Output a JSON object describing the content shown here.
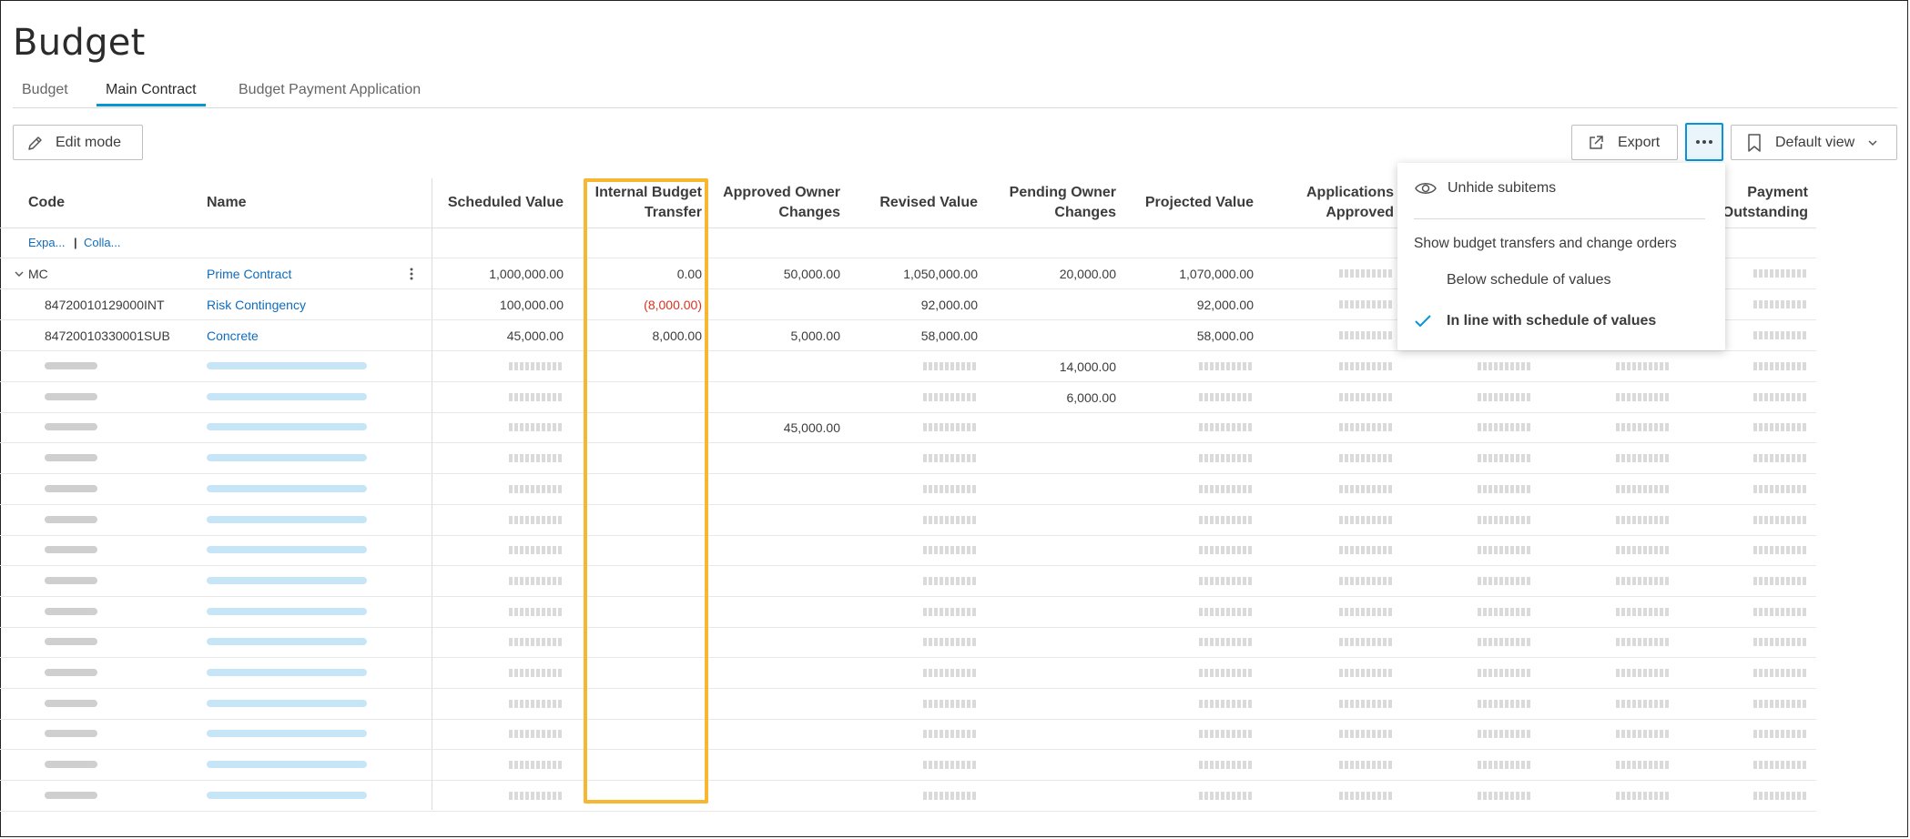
{
  "page": {
    "title": "Budget"
  },
  "tabs": [
    {
      "label": "Budget",
      "active": false
    },
    {
      "label": "Main Contract",
      "active": true
    },
    {
      "label": "Budget Payment Application",
      "active": false
    }
  ],
  "toolbar": {
    "edit_mode_label": "Edit mode",
    "export_label": "Export",
    "more_icon": "ellipsis-icon",
    "view_label": "Default view"
  },
  "columns": {
    "code": "Code",
    "name": "Name",
    "scheduled_value": "Scheduled Value",
    "ibt_1": "Internal Budget",
    "ibt_2": "Transfer",
    "aoc_1": "Approved Owner",
    "aoc_2": "Changes",
    "revised_value": "Revised Value",
    "poc_1": "Pending Owner",
    "poc_2": "Changes",
    "projected_value": "Projected Value",
    "apps_1": "Applications",
    "apps_2": "Approved",
    "pay_1": "Payment",
    "pay_2": "Outstanding"
  },
  "expand_collapse": {
    "expand": "Expa...",
    "separator": "|",
    "collapse": "Colla..."
  },
  "rows": [
    {
      "code": "MC",
      "name": "Prime Contract",
      "scheduled_value": "1,000,000.00",
      "internal_budget_transfer": "0.00",
      "approved_owner_changes": "50,000.00",
      "revised_value": "1,050,000.00",
      "pending_owner_changes": "20,000.00",
      "projected_value": "1,070,000.00"
    },
    {
      "code": "84720010129000INT",
      "name": "Risk Contingency",
      "scheduled_value": "100,000.00",
      "internal_budget_transfer": "(8,000.00)",
      "approved_owner_changes": "",
      "revised_value": "92,000.00",
      "pending_owner_changes": "",
      "projected_value": "92,000.00"
    },
    {
      "code": "84720010330001SUB",
      "name": "Concrete",
      "scheduled_value": "45,000.00",
      "internal_budget_transfer": "8,000.00",
      "approved_owner_changes": "5,000.00",
      "revised_value": "58,000.00",
      "pending_owner_changes": "",
      "projected_value": "58,000.00"
    }
  ],
  "placeholder_values": {
    "row4_pending_owner_changes": "14,000.00",
    "row5_pending_owner_changes": "6,000.00",
    "row6_approved_owner_changes": "45,000.00"
  },
  "menu": {
    "unhide_label": "Unhide subitems",
    "section_label": "Show budget transfers and change orders",
    "option_below": "Below schedule of values",
    "option_inline": "In line with schedule of values",
    "selected": "In line with schedule of values"
  },
  "colors": {
    "accent": "#0696d7",
    "link": "#0f6cbd",
    "negative": "#d9321f",
    "highlight": "#f7b731"
  }
}
